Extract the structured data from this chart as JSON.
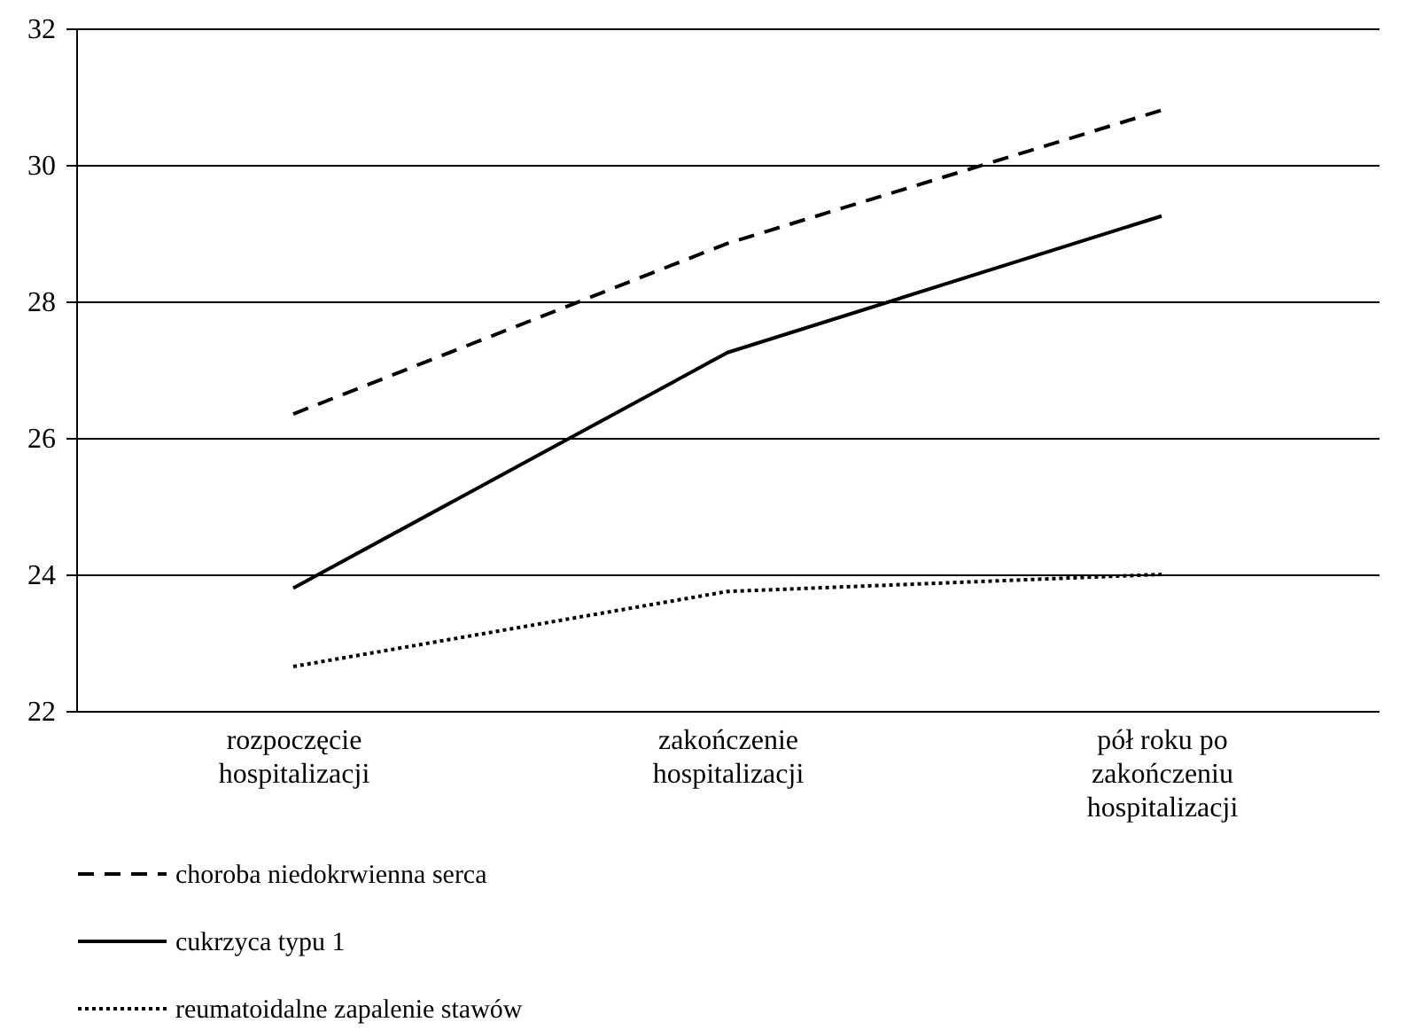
{
  "chart_data": {
    "type": "line",
    "categories": [
      "rozpoczęcie hospitalizacji",
      "zakończenie hospitalizacji",
      "pół roku po zakończeniu hospitalizacji"
    ],
    "series": [
      {
        "name": "choroba niedokrwienna serca",
        "color": "#000000",
        "line_style": "dashed",
        "values": [
          26.35,
          28.85,
          30.8
        ]
      },
      {
        "name": "cukrzyca typu 1",
        "color": "#000000",
        "line_style": "solid",
        "values": [
          23.8,
          27.25,
          29.25
        ]
      },
      {
        "name": "reumatoidalne zapalenie stawów",
        "color": "#000000",
        "line_style": "dotted",
        "values": [
          22.65,
          23.75,
          24.0
        ]
      }
    ],
    "ylim": [
      22,
      32
    ],
    "yticks": [
      22,
      24,
      26,
      28,
      30,
      32
    ],
    "grid": "y",
    "legend": "bottom",
    "marker": "none"
  }
}
